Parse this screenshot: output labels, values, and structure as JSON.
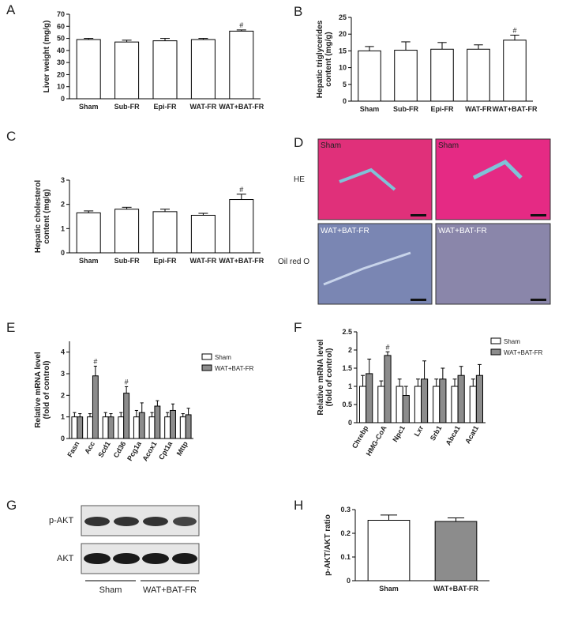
{
  "chart_data": [
    {
      "type": "bar",
      "panel": "A",
      "ylabel": [
        "Liver weight (mg/g)"
      ],
      "categories": [
        "Sham",
        "Sub-FR",
        "Epi-FR",
        "WAT-FR",
        "WAT+BAT-FR"
      ],
      "values": [
        49,
        47,
        48,
        49,
        56
      ],
      "errors": [
        1,
        1.5,
        2,
        1,
        1
      ],
      "color": "#ffffff",
      "significance": [
        null,
        null,
        null,
        null,
        "#"
      ],
      "ylim": [
        0,
        70
      ],
      "yticks": [
        0,
        10,
        20,
        30,
        40,
        50,
        60,
        70
      ]
    },
    {
      "type": "bar",
      "panel": "B",
      "ylabel": [
        "Hepatic triglycerides",
        "content (mg/g)"
      ],
      "categories": [
        "Sham",
        "Sub-FR",
        "Epi-FR",
        "WAT-FR",
        "WAT+BAT-FR"
      ],
      "values": [
        15,
        15.2,
        15.5,
        15.5,
        18.2
      ],
      "errors": [
        1.3,
        2.5,
        2,
        1.3,
        1.5
      ],
      "color": "#ffffff",
      "significance": [
        null,
        null,
        null,
        null,
        "#"
      ],
      "ylim": [
        0,
        25
      ],
      "yticks": [
        0,
        5,
        10,
        15,
        20,
        25
      ]
    },
    {
      "type": "bar",
      "panel": "C",
      "ylabel": [
        "Hepatic cholesterol",
        "content (mg/g)"
      ],
      "categories": [
        "Sham",
        "Sub-FR",
        "Epi-FR",
        "WAT-FR",
        "WAT+BAT-FR"
      ],
      "values": [
        1.65,
        1.8,
        1.7,
        1.55,
        2.2
      ],
      "errors": [
        0.08,
        0.08,
        0.1,
        0.08,
        0.22
      ],
      "color": "#ffffff",
      "significance": [
        null,
        null,
        null,
        null,
        "#"
      ],
      "ylim": [
        0,
        3
      ],
      "yticks": [
        0,
        1,
        2,
        3
      ]
    },
    {
      "type": "bar",
      "panel": "E",
      "ylabel": [
        "Relative mRNA level",
        "(fold of control)"
      ],
      "categories": [
        "Fasn",
        "Acc",
        "Scd1",
        "Cd36",
        "Pcg1a",
        "Acox1",
        "Cpt1a",
        "Mttp"
      ],
      "series": [
        {
          "name": "Sham",
          "color": "#ffffff",
          "values": [
            1,
            1,
            1,
            1,
            1,
            1,
            1,
            1
          ],
          "errors": [
            0.2,
            0.15,
            0.2,
            0.2,
            0.3,
            0.2,
            0.2,
            0.15
          ]
        },
        {
          "name": "WAT+BAT-FR",
          "color": "#8c8c8c",
          "values": [
            1.0,
            2.9,
            1.0,
            2.1,
            1.2,
            1.5,
            1.3,
            1.1
          ],
          "errors": [
            0.15,
            0.45,
            0.15,
            0.3,
            0.45,
            0.25,
            0.3,
            0.3
          ],
          "significance": [
            null,
            "#",
            null,
            "#",
            null,
            null,
            null,
            null
          ]
        }
      ],
      "ylim": [
        0,
        4.5
      ],
      "yticks": [
        0,
        1,
        2,
        3,
        4
      ]
    },
    {
      "type": "bar",
      "panel": "F",
      "ylabel": [
        "Relative mRNA level",
        "(fold of control)"
      ],
      "categories": [
        "Chrebp",
        "HMG-CoA",
        "Npc1",
        "Lxr",
        "Srb1",
        "Abca1",
        "Acat1"
      ],
      "series": [
        {
          "name": "Sham",
          "color": "#ffffff",
          "values": [
            1,
            1,
            1,
            1,
            1,
            1,
            1
          ],
          "errors": [
            0.3,
            0.15,
            0.2,
            0.2,
            0.2,
            0.2,
            0.2
          ]
        },
        {
          "name": "WAT+BAT-FR",
          "color": "#8c8c8c",
          "values": [
            1.35,
            1.85,
            0.75,
            1.2,
            1.2,
            1.3,
            1.3
          ],
          "errors": [
            0.4,
            0.1,
            0.25,
            0.5,
            0.3,
            0.25,
            0.3
          ],
          "significance": [
            null,
            "#",
            null,
            null,
            null,
            null,
            null
          ]
        }
      ],
      "ylim": [
        0,
        2.5
      ],
      "yticks": [
        0,
        0.5,
        1,
        1.5,
        2,
        2.5
      ]
    },
    {
      "type": "bar",
      "panel": "H",
      "ylabel": [
        "p-AKT/AKT ratio"
      ],
      "categories": [
        "Sham",
        "WAT+BAT-FR"
      ],
      "values": [
        0.255,
        0.25
      ],
      "errors": [
        0.022,
        0.015
      ],
      "colors": [
        "#ffffff",
        "#8c8c8c"
      ],
      "ylim": [
        0,
        0.3
      ],
      "yticks": [
        0,
        0.1,
        0.2,
        0.3
      ]
    }
  ],
  "images": [
    {
      "panel": "D",
      "row_labels": [
        "HE",
        "Oil red O"
      ],
      "tile_labels": [
        [
          "Sham",
          "Sham"
        ],
        [
          "WAT+BAT-FR",
          "WAT+BAT-FR"
        ]
      ]
    },
    {
      "panel": "G",
      "row_labels": [
        "p-AKT",
        "AKT"
      ],
      "group_labels": [
        "Sham",
        "WAT+BAT-FR"
      ]
    }
  ]
}
